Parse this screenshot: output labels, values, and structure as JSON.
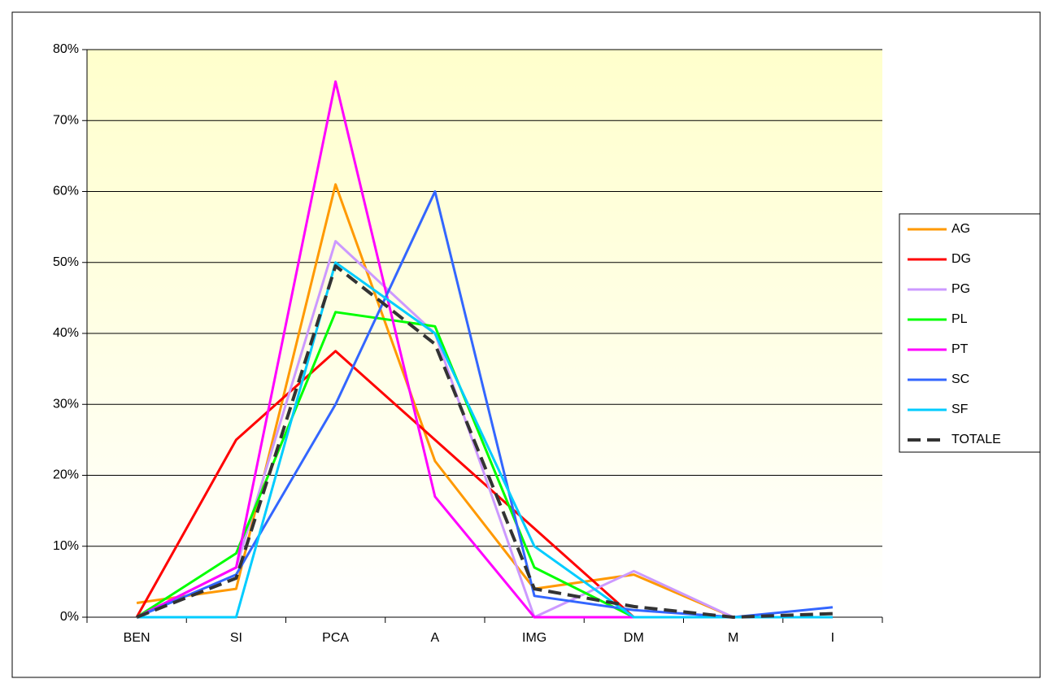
{
  "chart_data": {
    "type": "line",
    "categories": [
      "BEN",
      "SI",
      "PCA",
      "A",
      "IMG",
      "DM",
      "M",
      "I"
    ],
    "series": [
      {
        "name": "AG",
        "color": "#ff9900",
        "values": [
          2,
          4,
          61,
          22,
          4,
          6,
          0,
          0
        ]
      },
      {
        "name": "DG",
        "color": "#ff0000",
        "values": [
          0,
          25,
          37.5,
          25,
          12.5,
          0,
          0,
          0
        ]
      },
      {
        "name": "PG",
        "color": "#cc99ff",
        "values": [
          0,
          7,
          53,
          40,
          0,
          6.5,
          0,
          0
        ]
      },
      {
        "name": "PL",
        "color": "#00ff00",
        "values": [
          0,
          9,
          43,
          41,
          7,
          0,
          0,
          0
        ]
      },
      {
        "name": "PT",
        "color": "#ff00ff",
        "values": [
          0,
          7,
          75.5,
          17,
          0,
          0,
          0,
          0
        ]
      },
      {
        "name": "SC",
        "color": "#3366ff",
        "values": [
          0,
          6,
          30,
          60,
          3,
          1,
          0,
          1.4
        ]
      },
      {
        "name": "SF",
        "color": "#00ccff",
        "values": [
          0,
          0,
          50,
          40,
          10,
          0,
          0,
          0
        ]
      },
      {
        "name": "TOTALE",
        "color": "#333333",
        "dashed": true,
        "values": [
          0,
          5.5,
          49.5,
          38.5,
          4,
          1.5,
          0,
          0.5
        ]
      }
    ],
    "ylim": [
      0,
      80
    ],
    "yticks": [
      {
        "value": 0,
        "label": "0%"
      },
      {
        "value": 10,
        "label": "10%"
      },
      {
        "value": 20,
        "label": "20%"
      },
      {
        "value": 30,
        "label": "30%"
      },
      {
        "value": 40,
        "label": "40%"
      },
      {
        "value": 50,
        "label": "50%"
      },
      {
        "value": 60,
        "label": "60%"
      },
      {
        "value": 70,
        "label": "70%"
      },
      {
        "value": 80,
        "label": "80%"
      }
    ],
    "grid": true,
    "legend": "right"
  }
}
